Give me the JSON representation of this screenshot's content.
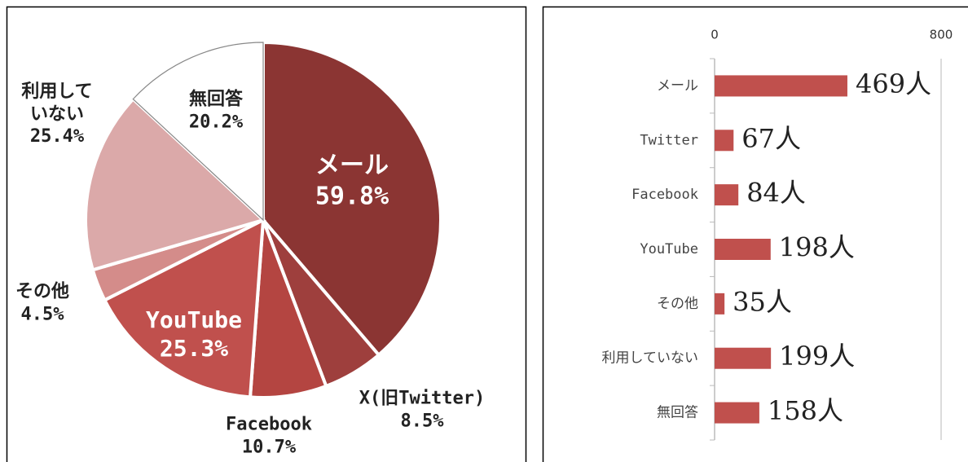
{
  "chart_data": [
    {
      "type": "pie",
      "categories": [
        "メール",
        "X(旧Twitter)",
        "Facebook",
        "YouTube",
        "その他",
        "利用して\nいない",
        "無回答"
      ],
      "values": [
        59.8,
        8.5,
        10.7,
        25.3,
        4.5,
        25.4,
        20.2
      ],
      "value_labels": [
        "59.8%",
        "8.5%",
        "10.7%",
        "25.3%",
        "4.5%",
        "25.4%",
        "20.2%"
      ],
      "colors": [
        "#8b3533",
        "#9e3f3d",
        "#b44541",
        "#c0504d",
        "#d48c8a",
        "#dba9a9",
        "#ffffff"
      ]
    },
    {
      "type": "hbar",
      "categories": [
        "メール",
        "Twitter",
        "Facebook",
        "YouTube",
        "その他",
        "利用していない",
        "無回答"
      ],
      "values": [
        469,
        67,
        84,
        198,
        35,
        199,
        158
      ],
      "value_labels": [
        "469人",
        "67人",
        "84人",
        "198人",
        "35人",
        "199人",
        "158人"
      ],
      "color": "#c0504d",
      "xlim": [
        0,
        800
      ],
      "xticks": [
        0,
        800
      ],
      "grid": true
    }
  ]
}
